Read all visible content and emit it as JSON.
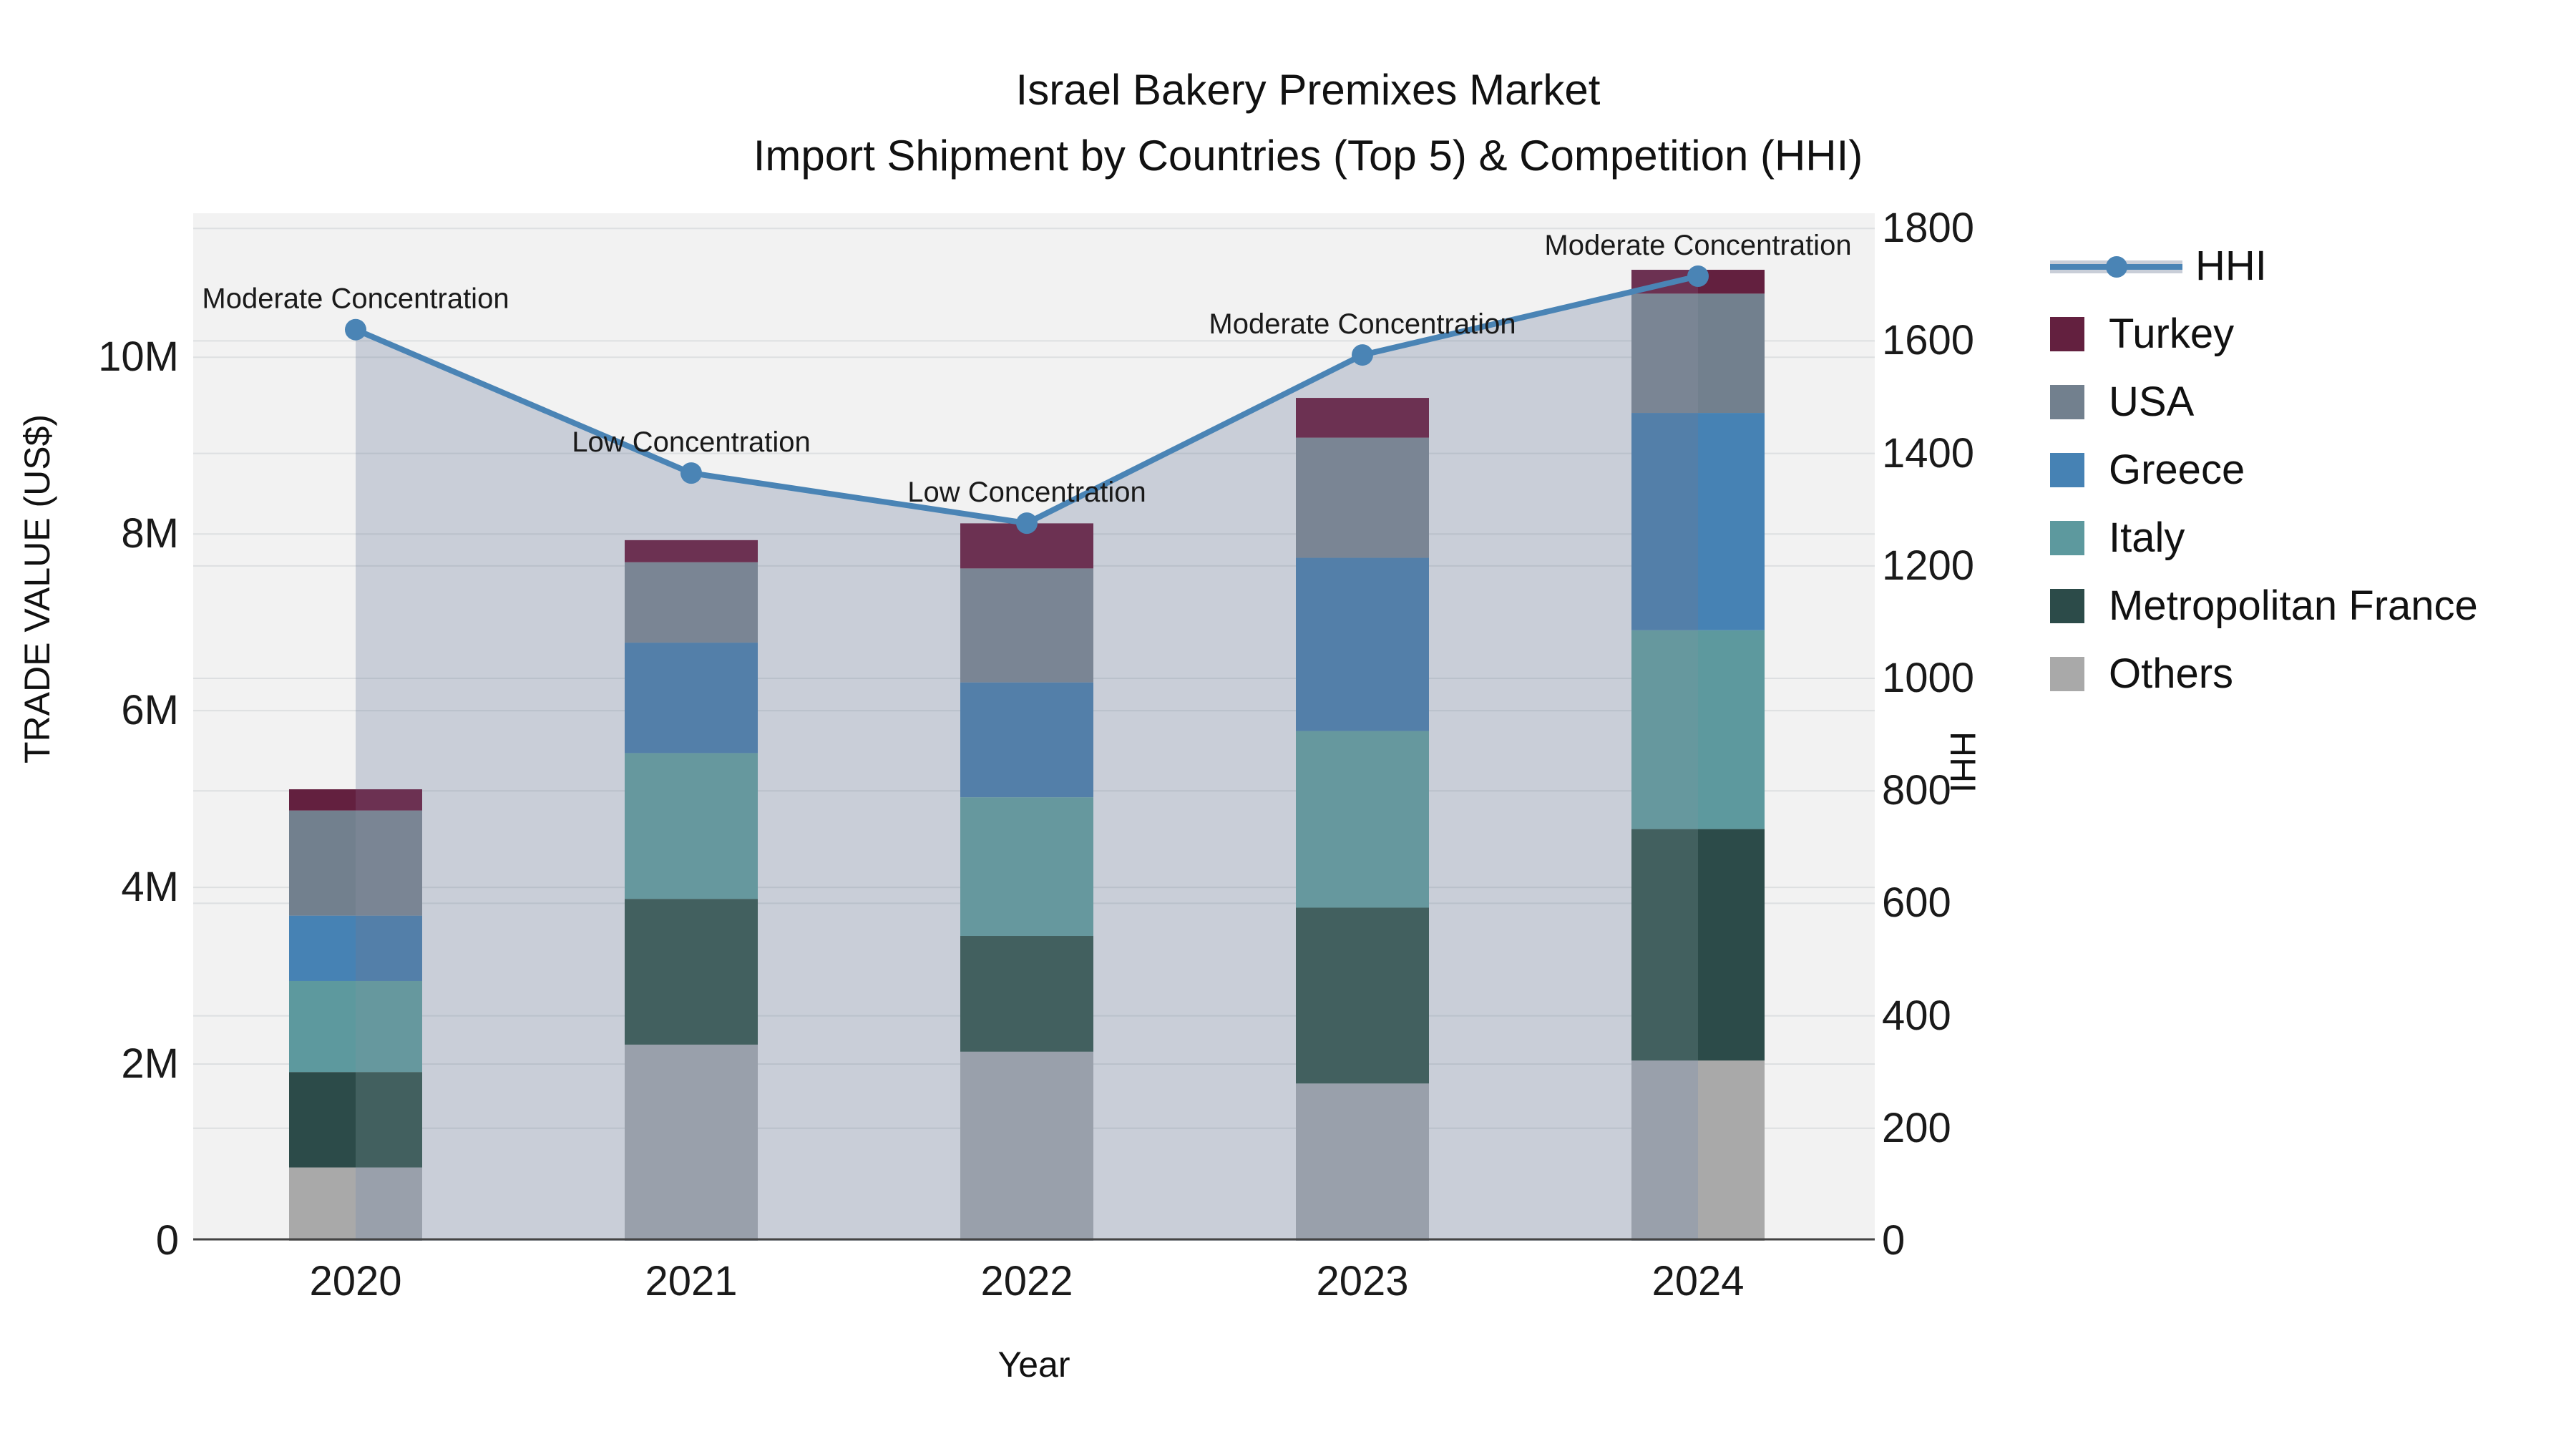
{
  "title": "Israel Bakery Premixes Market",
  "subtitle": "Import Shipment by Countries (Top 5) & Competition (HHI)",
  "axes": {
    "x_label": "Year",
    "y_left_label": "TRADE VALUE (US$)",
    "y_right_label": "HHI",
    "y_left_ticks": [
      {
        "label": "0",
        "value": 0
      },
      {
        "label": "2M",
        "value": 2
      },
      {
        "label": "4M",
        "value": 4
      },
      {
        "label": "6M",
        "value": 6
      },
      {
        "label": "8M",
        "value": 8
      },
      {
        "label": "10M",
        "value": 10
      }
    ],
    "y_right_ticks": [
      0,
      200,
      400,
      600,
      800,
      1000,
      1200,
      1400,
      1600,
      1800
    ],
    "y_left_max": 11.63,
    "y_right_max": 1827
  },
  "chart_data": {
    "type": "stacked-bar+line",
    "categories": [
      "2020",
      "2021",
      "2022",
      "2023",
      "2024"
    ],
    "values_unit": "USD (millions)",
    "series": [
      {
        "name": "Others",
        "color": "#a9a9a9",
        "color_overlap": "#99a0ab",
        "values": [
          0.83,
          2.22,
          2.14,
          1.78,
          2.04
        ]
      },
      {
        "name": "Metropolitan France",
        "color": "#2c4b49",
        "color_overlap": "#42605f",
        "values": [
          1.08,
          1.65,
          1.31,
          1.99,
          2.62
        ]
      },
      {
        "name": "Italy",
        "color": "#5d999e",
        "color_overlap": "#66989e",
        "values": [
          1.03,
          1.65,
          1.57,
          2.0,
          2.25
        ]
      },
      {
        "name": "Greece",
        "color": "#4682b4",
        "color_overlap": "#537fa9",
        "values": [
          0.74,
          1.25,
          1.3,
          1.96,
          2.46
        ]
      },
      {
        "name": "USA",
        "color": "#72808e",
        "color_overlap": "#7a8594",
        "values": [
          1.19,
          0.91,
          1.29,
          1.36,
          1.35
        ]
      },
      {
        "name": "Turkey",
        "color": "#63203f",
        "color_overlap": "#6c3152",
        "values": [
          0.24,
          0.25,
          0.51,
          0.45,
          0.27
        ]
      }
    ],
    "line": {
      "name": "HHI",
      "color": "#4a84b5",
      "area_color": "#c9ced8",
      "values": [
        1620,
        1365,
        1276,
        1575,
        1715
      ]
    },
    "annotations": [
      "Moderate Concentration",
      "Low Concentration",
      "Low Concentration",
      "Moderate Concentration",
      "Moderate Concentration"
    ],
    "bar_totals": [
      5.11,
      7.93,
      8.12,
      9.54,
      11.0
    ],
    "legend_position": "right",
    "grid": true
  },
  "legend": {
    "items": [
      {
        "label": "HHI",
        "type": "line",
        "color": "#4a84b5"
      },
      {
        "label": "Turkey",
        "type": "swatch",
        "color": "#63203f"
      },
      {
        "label": "USA",
        "type": "swatch",
        "color": "#72808e"
      },
      {
        "label": "Greece",
        "type": "swatch",
        "color": "#4682b4"
      },
      {
        "label": "Italy",
        "type": "swatch",
        "color": "#5d999e"
      },
      {
        "label": "Metropolitan France",
        "type": "swatch",
        "color": "#2c4b49"
      },
      {
        "label": "Others",
        "type": "swatch",
        "color": "#a9a9a9"
      }
    ]
  },
  "colors": {
    "plot_background": "#f2f2f2",
    "page_background": "#ffffff",
    "gridline": "rgba(100,110,125,0.14)",
    "axis_line": "#444444",
    "text": "#111111"
  }
}
